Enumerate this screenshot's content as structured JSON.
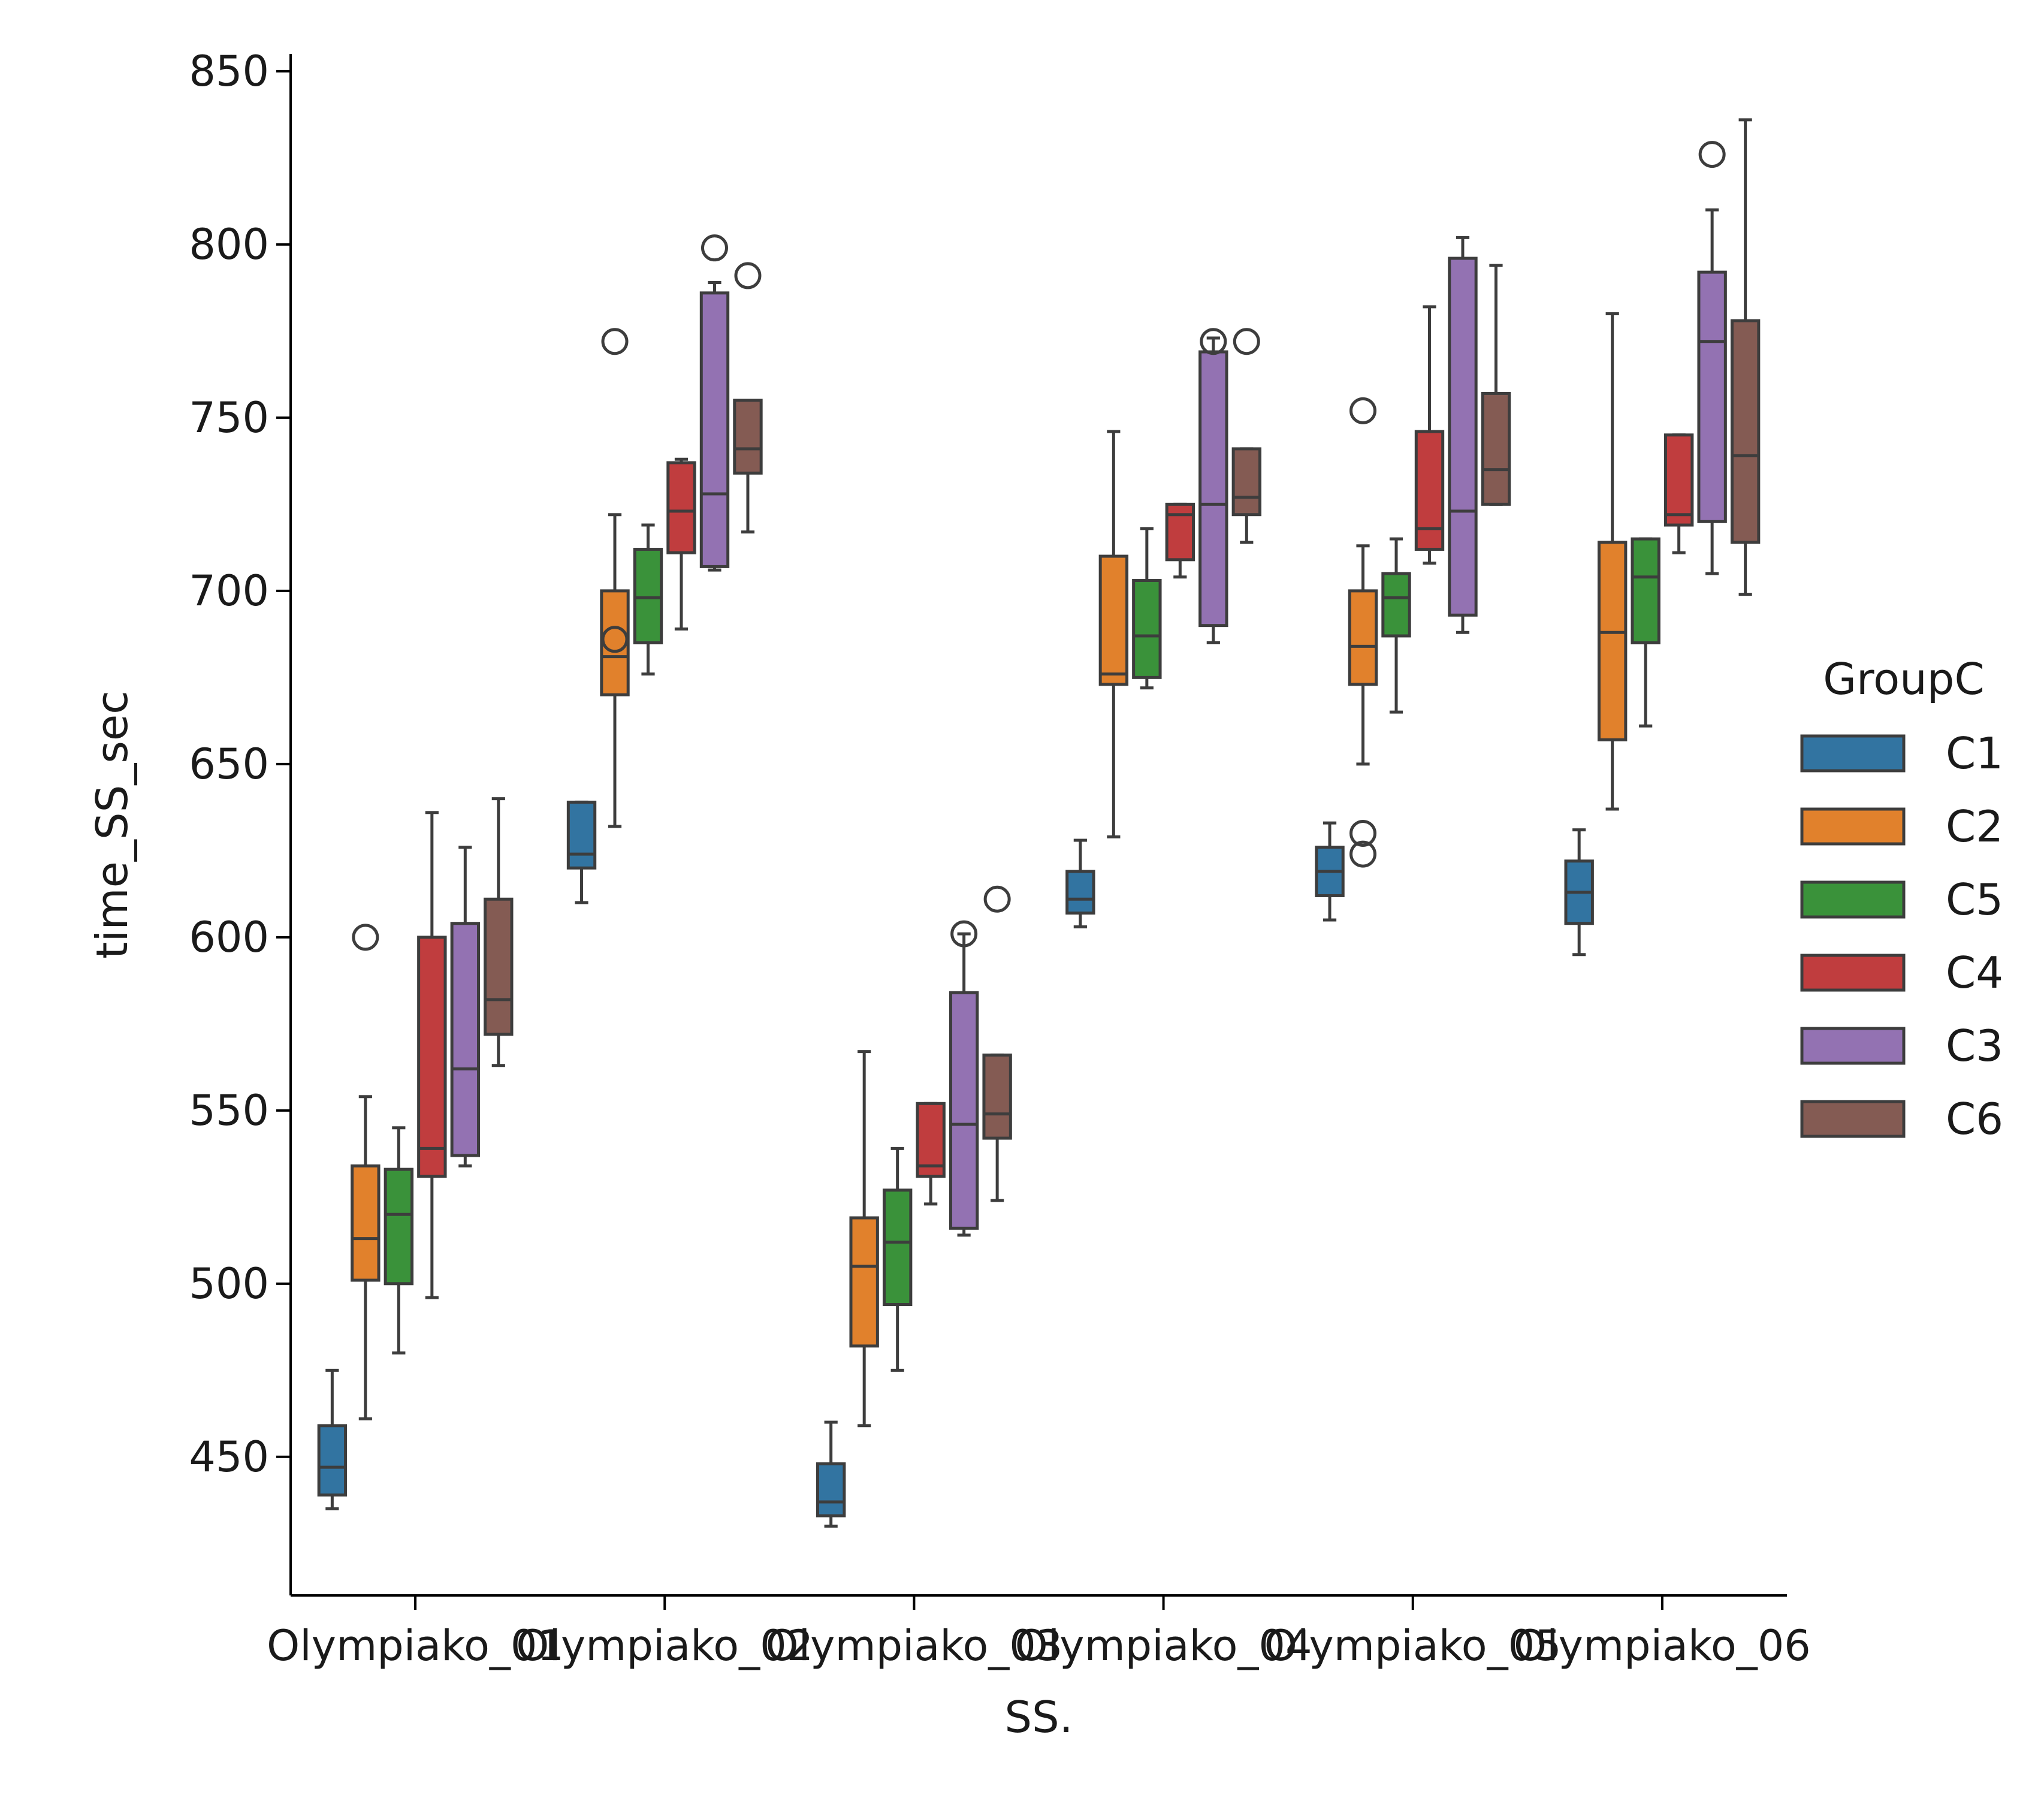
{
  "chart_data": {
    "type": "box",
    "title": "",
    "xlabel": "SS.",
    "ylabel": "time_SS_sec",
    "ylim": [
      410,
      855
    ],
    "yticks": [
      450,
      500,
      550,
      600,
      650,
      700,
      750,
      800,
      850
    ],
    "grid": false,
    "legend": {
      "title": "GroupC",
      "placement": "right"
    },
    "categories": [
      "Olympiako_01",
      "Olympiako_02",
      "Olympiako_03",
      "Olympiako_04",
      "Olympiako_05",
      "Olympiako_06"
    ],
    "series": [
      {
        "name": "C1",
        "color": "#3274a1",
        "boxes": [
          {
            "whislo": 435,
            "q1": 439,
            "med": 447,
            "q3": 459,
            "whishi": 475,
            "fliers": []
          },
          {
            "whislo": 610,
            "q1": 620,
            "med": 624,
            "q3": 639,
            "whishi": 639,
            "fliers": []
          },
          {
            "whislo": 430,
            "q1": 433,
            "med": 437,
            "q3": 448,
            "whishi": 460,
            "fliers": []
          },
          {
            "whislo": 603,
            "q1": 607,
            "med": 611,
            "q3": 619,
            "whishi": 628,
            "fliers": []
          },
          {
            "whislo": 605,
            "q1": 612,
            "med": 619,
            "q3": 626,
            "whishi": 633,
            "fliers": []
          },
          {
            "whislo": 595,
            "q1": 604,
            "med": 613,
            "q3": 622,
            "whishi": 631,
            "fliers": []
          }
        ]
      },
      {
        "name": "C2",
        "color": "#e1812c",
        "boxes": [
          {
            "whislo": 461,
            "q1": 501,
            "med": 513,
            "q3": 534,
            "whishi": 554,
            "fliers": [
              600
            ]
          },
          {
            "whislo": 632,
            "q1": 670,
            "med": 681,
            "q3": 700,
            "whishi": 722,
            "fliers": [
              686,
              772
            ]
          },
          {
            "whislo": 459,
            "q1": 482,
            "med": 505,
            "q3": 519,
            "whishi": 567,
            "fliers": []
          },
          {
            "whislo": 629,
            "q1": 673,
            "med": 676,
            "q3": 710,
            "whishi": 746,
            "fliers": []
          },
          {
            "whislo": 650,
            "q1": 673,
            "med": 684,
            "q3": 700,
            "whishi": 713,
            "fliers": [
              624,
              630,
              752
            ]
          },
          {
            "whislo": 637,
            "q1": 657,
            "med": 688,
            "q3": 714,
            "whishi": 780,
            "fliers": []
          }
        ]
      },
      {
        "name": "C5",
        "color": "#3a923a",
        "boxes": [
          {
            "whislo": 480,
            "q1": 500,
            "med": 520,
            "q3": 533,
            "whishi": 545,
            "fliers": []
          },
          {
            "whislo": 676,
            "q1": 685,
            "med": 698,
            "q3": 712,
            "whishi": 719,
            "fliers": []
          },
          {
            "whislo": 475,
            "q1": 494,
            "med": 512,
            "q3": 527,
            "whishi": 539,
            "fliers": []
          },
          {
            "whislo": 672,
            "q1": 675,
            "med": 687,
            "q3": 703,
            "whishi": 718,
            "fliers": []
          },
          {
            "whislo": 665,
            "q1": 687,
            "med": 698,
            "q3": 705,
            "whishi": 715,
            "fliers": []
          },
          {
            "whislo": 661,
            "q1": 685,
            "med": 704,
            "q3": 715,
            "whishi": 715,
            "fliers": []
          }
        ]
      },
      {
        "name": "C4",
        "color": "#c03d3e",
        "boxes": [
          {
            "whislo": 496,
            "q1": 531,
            "med": 539,
            "q3": 600,
            "whishi": 636,
            "fliers": []
          },
          {
            "whislo": 689,
            "q1": 711,
            "med": 723,
            "q3": 737,
            "whishi": 738,
            "fliers": []
          },
          {
            "whislo": 523,
            "q1": 531,
            "med": 534,
            "q3": 552,
            "whishi": 552,
            "fliers": []
          },
          {
            "whislo": 704,
            "q1": 709,
            "med": 722,
            "q3": 725,
            "whishi": 725,
            "fliers": []
          },
          {
            "whislo": 708,
            "q1": 712,
            "med": 718,
            "q3": 746,
            "whishi": 782,
            "fliers": []
          },
          {
            "whislo": 711,
            "q1": 719,
            "med": 722,
            "q3": 745,
            "whishi": 745,
            "fliers": []
          }
        ]
      },
      {
        "name": "C3",
        "color": "#9372b2",
        "boxes": [
          {
            "whislo": 534,
            "q1": 537,
            "med": 562,
            "q3": 604,
            "whishi": 626,
            "fliers": []
          },
          {
            "whislo": 706,
            "q1": 707,
            "med": 728,
            "q3": 786,
            "whishi": 789,
            "fliers": [
              799
            ]
          },
          {
            "whislo": 514,
            "q1": 516,
            "med": 546,
            "q3": 584,
            "whishi": 601,
            "fliers": [
              601
            ]
          },
          {
            "whislo": 685,
            "q1": 690,
            "med": 725,
            "q3": 769,
            "whishi": 773,
            "fliers": [
              772
            ]
          },
          {
            "whislo": 688,
            "q1": 693,
            "med": 723,
            "q3": 796,
            "whishi": 802,
            "fliers": []
          },
          {
            "whislo": 705,
            "q1": 720,
            "med": 772,
            "q3": 792,
            "whishi": 810,
            "fliers": [
              826
            ]
          }
        ]
      },
      {
        "name": "C6",
        "color": "#845b53",
        "boxes": [
          {
            "whislo": 563,
            "q1": 572,
            "med": 582,
            "q3": 611,
            "whishi": 640,
            "fliers": []
          },
          {
            "whislo": 717,
            "q1": 734,
            "med": 741,
            "q3": 755,
            "whishi": 755,
            "fliers": [
              791
            ]
          },
          {
            "whislo": 524,
            "q1": 542,
            "med": 549,
            "q3": 566,
            "whishi": 566,
            "fliers": [
              611
            ]
          },
          {
            "whislo": 714,
            "q1": 722,
            "med": 727,
            "q3": 741,
            "whishi": 741,
            "fliers": [
              772
            ]
          },
          {
            "whislo": 725,
            "q1": 725,
            "med": 735,
            "q3": 757,
            "whishi": 794,
            "fliers": []
          },
          {
            "whislo": 699,
            "q1": 714,
            "med": 739,
            "q3": 778,
            "whishi": 836,
            "fliers": []
          }
        ]
      }
    ]
  }
}
